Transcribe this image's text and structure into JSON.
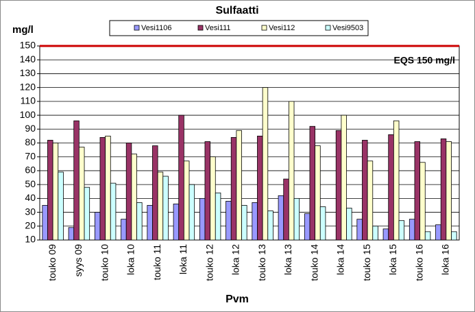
{
  "chart_data": {
    "type": "bar",
    "title": "Sulfaatti",
    "y_label": "mg/l",
    "x_label": "Pvm",
    "categories": [
      "touko 09",
      "syys 09",
      "touko 10",
      "loka 10",
      "touko 11",
      "loka 11",
      "touko 12",
      "loka 12",
      "touko 13",
      "loka 13",
      "touko 14",
      "loka 14",
      "touko 15",
      "loka 15",
      "touko 16",
      "loka 16"
    ],
    "series": [
      {
        "name": "Vesi1106",
        "color": "#9999ff",
        "values": [
          35,
          19,
          30,
          25,
          35,
          36,
          40,
          38,
          37,
          42,
          29,
          null,
          25,
          18,
          25,
          21
        ]
      },
      {
        "name": "Vesi111",
        "color": "#993366",
        "values": [
          82,
          96,
          84,
          80,
          78,
          100,
          81,
          84,
          85,
          54,
          92,
          89,
          82,
          86,
          81,
          83
        ]
      },
      {
        "name": "Vesi112",
        "color": "#ffffcc",
        "values": [
          80,
          77,
          85,
          72,
          59,
          67,
          70,
          89,
          120,
          110,
          78,
          100,
          67,
          96,
          66,
          81
        ]
      },
      {
        "name": "Vesi9503",
        "color": "#ccffff",
        "values": [
          59,
          48,
          51,
          37,
          56,
          50,
          44,
          35,
          31,
          40,
          34,
          33,
          20,
          24,
          16,
          16
        ]
      }
    ],
    "reference_line": {
      "value": 150,
      "label": "EQS 150 mg/l",
      "color": "#cc0000"
    },
    "ylim": [
      10,
      150
    ],
    "yticks": [
      10,
      20,
      30,
      40,
      50,
      60,
      70,
      80,
      90,
      100,
      110,
      120,
      130,
      140,
      150
    ],
    "grid": true
  }
}
